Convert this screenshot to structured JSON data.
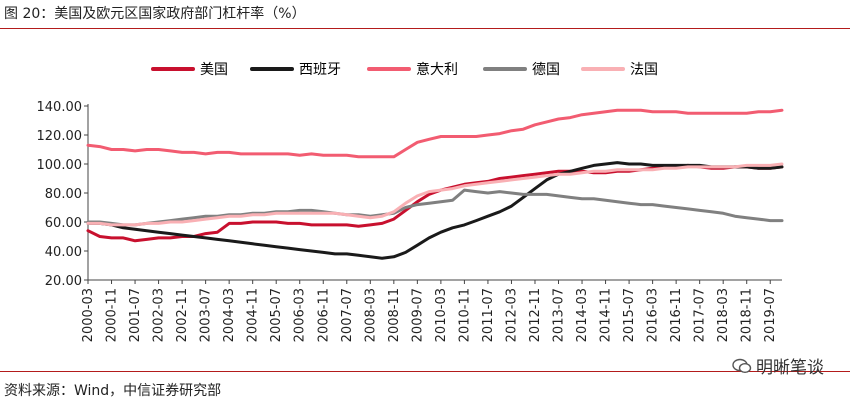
{
  "figure_title": "图 20：美国及欧元区国家政府部门杠杆率（%）",
  "source": "资料来源：Wind，中信证券研究部",
  "watermark": "明晰笔谈",
  "chart_data": {
    "type": "line",
    "title": "",
    "xlabel": "",
    "ylabel": "",
    "ylim": [
      20,
      140
    ],
    "y_ticks": [
      "20.00",
      "40.00",
      "60.00",
      "80.00",
      "100.00",
      "120.00",
      "140.00"
    ],
    "x_ticks": [
      "2000-03",
      "2000-11",
      "2001-07",
      "2002-03",
      "2002-11",
      "2003-07",
      "2004-03",
      "2004-11",
      "2005-07",
      "2006-03",
      "2006-11",
      "2007-07",
      "2008-03",
      "2008-11",
      "2009-07",
      "2010-03",
      "2010-11",
      "2011-07",
      "2012-03",
      "2012-11",
      "2013-07",
      "2014-03",
      "2014-11",
      "2015-07",
      "2016-03",
      "2016-11",
      "2017-07",
      "2018-03",
      "2018-11",
      "2019-07"
    ],
    "legend_position": "top",
    "grid": false,
    "x": [
      "2000-03",
      "2000-07",
      "2000-11",
      "2001-03",
      "2001-07",
      "2001-11",
      "2002-03",
      "2002-07",
      "2002-11",
      "2003-03",
      "2003-07",
      "2003-11",
      "2004-03",
      "2004-07",
      "2004-11",
      "2005-03",
      "2005-07",
      "2005-11",
      "2006-03",
      "2006-07",
      "2006-11",
      "2007-03",
      "2007-07",
      "2007-11",
      "2008-03",
      "2008-07",
      "2008-11",
      "2009-03",
      "2009-07",
      "2009-11",
      "2010-03",
      "2010-07",
      "2010-11",
      "2011-03",
      "2011-07",
      "2011-11",
      "2012-03",
      "2012-07",
      "2012-11",
      "2013-03",
      "2013-07",
      "2013-11",
      "2014-03",
      "2014-07",
      "2014-11",
      "2015-03",
      "2015-07",
      "2015-11",
      "2016-03",
      "2016-07",
      "2016-11",
      "2017-03",
      "2017-07",
      "2017-11",
      "2018-03",
      "2018-07",
      "2018-11",
      "2019-03",
      "2019-07",
      "2019-09"
    ],
    "series": [
      {
        "name": "美国",
        "color": "#c8102e",
        "width": 3,
        "values": [
          54,
          50,
          49,
          49,
          47,
          48,
          49,
          49,
          50,
          50,
          52,
          53,
          59,
          59,
          60,
          60,
          60,
          59,
          59,
          58,
          58,
          58,
          58,
          57,
          58,
          59,
          62,
          68,
          74,
          79,
          82,
          84,
          86,
          87,
          88,
          90,
          91,
          92,
          93,
          94,
          95,
          95,
          95,
          94,
          94,
          95,
          95,
          96,
          97,
          98,
          98,
          99,
          98,
          97,
          97,
          98,
          98,
          97,
          97,
          98
        ]
      },
      {
        "name": "西班牙",
        "color": "#1a1a1a",
        "width": 3,
        "values": [
          59,
          59,
          58,
          56,
          55,
          54,
          53,
          52,
          51,
          50,
          49,
          48,
          47,
          46,
          45,
          44,
          43,
          42,
          41,
          40,
          39,
          38,
          38,
          37,
          36,
          35,
          36,
          39,
          44,
          49,
          53,
          56,
          58,
          61,
          64,
          67,
          71,
          77,
          83,
          89,
          93,
          95,
          97,
          99,
          100,
          101,
          100,
          100,
          99,
          99,
          99,
          99,
          99,
          98,
          98,
          98,
          98,
          97,
          97,
          98
        ]
      },
      {
        "name": "意大利",
        "color": "#f25c71",
        "width": 3,
        "values": [
          113,
          112,
          110,
          110,
          109,
          110,
          110,
          109,
          108,
          108,
          107,
          108,
          108,
          107,
          107,
          107,
          107,
          107,
          106,
          107,
          106,
          106,
          106,
          105,
          105,
          105,
          105,
          110,
          115,
          117,
          119,
          119,
          119,
          119,
          120,
          121,
          123,
          124,
          127,
          129,
          131,
          132,
          134,
          135,
          136,
          137,
          137,
          137,
          136,
          136,
          136,
          135,
          135,
          135,
          135,
          135,
          135,
          136,
          136,
          137
        ]
      },
      {
        "name": "德国",
        "color": "#808080",
        "width": 3,
        "values": [
          60,
          60,
          59,
          58,
          58,
          59,
          60,
          61,
          62,
          63,
          64,
          64,
          65,
          65,
          66,
          66,
          67,
          67,
          68,
          68,
          67,
          66,
          65,
          65,
          64,
          65,
          66,
          70,
          72,
          73,
          74,
          75,
          82,
          81,
          80,
          81,
          80,
          79,
          79,
          79,
          78,
          77,
          76,
          76,
          75,
          74,
          73,
          72,
          72,
          71,
          70,
          69,
          68,
          67,
          66,
          64,
          63,
          62,
          61,
          61
        ]
      },
      {
        "name": "法国",
        "color": "#f9b0b4",
        "width": 3,
        "values": [
          59,
          59,
          58,
          58,
          58,
          59,
          59,
          60,
          60,
          61,
          62,
          63,
          64,
          64,
          65,
          65,
          66,
          66,
          66,
          66,
          66,
          66,
          65,
          64,
          63,
          64,
          67,
          73,
          78,
          81,
          82,
          83,
          85,
          86,
          87,
          88,
          89,
          90,
          91,
          92,
          93,
          93,
          94,
          95,
          95,
          96,
          96,
          96,
          96,
          97,
          97,
          98,
          98,
          98,
          98,
          98,
          99,
          99,
          99,
          100
        ]
      }
    ]
  }
}
